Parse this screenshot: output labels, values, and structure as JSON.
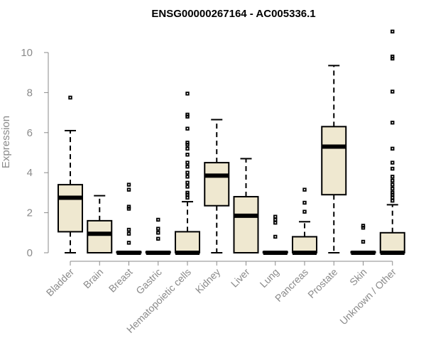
{
  "chart_data": {
    "type": "box",
    "title": "ENSG00000267164 - AC005336.1",
    "ylabel": "Expression",
    "xlabel": "",
    "ylim": [
      0,
      10.5
    ],
    "yticks": [
      0,
      2,
      4,
      6,
      8,
      10
    ],
    "categories": [
      "Bladder",
      "Brain",
      "Breast",
      "Gastric",
      "Hematopoietic cells",
      "Kidney",
      "Liver",
      "Lung",
      "Pancreas",
      "Prostate",
      "Skin",
      "Unknown / Other"
    ],
    "series": [
      {
        "min": 0,
        "q1": 1.05,
        "median": 2.75,
        "q3": 3.4,
        "max": 6.1,
        "outliers": [
          7.75
        ]
      },
      {
        "min": 0,
        "q1": 0,
        "median": 0.95,
        "q3": 1.6,
        "max": 2.85,
        "outliers": []
      },
      {
        "min": 0,
        "q1": 0,
        "median": 0,
        "q3": 0.05,
        "max": 0.05,
        "outliers": [
          0.5,
          0.95,
          1.15,
          2.2,
          2.3,
          3.15,
          3.4
        ]
      },
      {
        "min": 0,
        "q1": 0,
        "median": 0,
        "q3": 0.05,
        "max": 0.05,
        "outliers": [
          0.7,
          1.0,
          1.2,
          1.65
        ]
      },
      {
        "min": 0,
        "q1": 0,
        "median": 0,
        "q3": 1.05,
        "max": 2.55,
        "outliers": [
          2.75,
          2.9,
          3.0,
          3.3,
          3.5,
          3.8,
          4.0,
          4.3,
          4.5,
          4.9,
          5.2,
          5.4,
          5.5,
          6.2,
          6.8,
          6.9,
          7.95
        ]
      },
      {
        "min": 0,
        "q1": 2.35,
        "median": 3.85,
        "q3": 4.5,
        "max": 6.65,
        "outliers": []
      },
      {
        "min": 0,
        "q1": 0,
        "median": 1.85,
        "q3": 2.8,
        "max": 4.7,
        "outliers": []
      },
      {
        "min": 0,
        "q1": 0,
        "median": 0,
        "q3": 0.05,
        "max": 0.05,
        "outliers": [
          0.8,
          1.5,
          1.65,
          1.8
        ]
      },
      {
        "min": 0,
        "q1": 0,
        "median": 0,
        "q3": 0.8,
        "max": 1.55,
        "outliers": [
          2.05,
          2.5,
          3.15
        ]
      },
      {
        "min": 0,
        "q1": 2.9,
        "median": 5.3,
        "q3": 6.3,
        "max": 9.35,
        "outliers": []
      },
      {
        "min": 0,
        "q1": 0,
        "median": 0,
        "q3": 0.05,
        "max": 0.05,
        "outliers": [
          0.55,
          1.25,
          1.35
        ]
      },
      {
        "min": 0,
        "q1": 0,
        "median": 0,
        "q3": 1.0,
        "max": 2.4,
        "outliers": [
          2.6,
          2.75,
          2.9,
          3.0,
          3.2,
          3.4,
          3.6,
          3.8,
          4.2,
          4.5,
          5.2,
          6.5,
          8.05,
          9.7,
          9.8,
          11.05
        ]
      }
    ]
  }
}
